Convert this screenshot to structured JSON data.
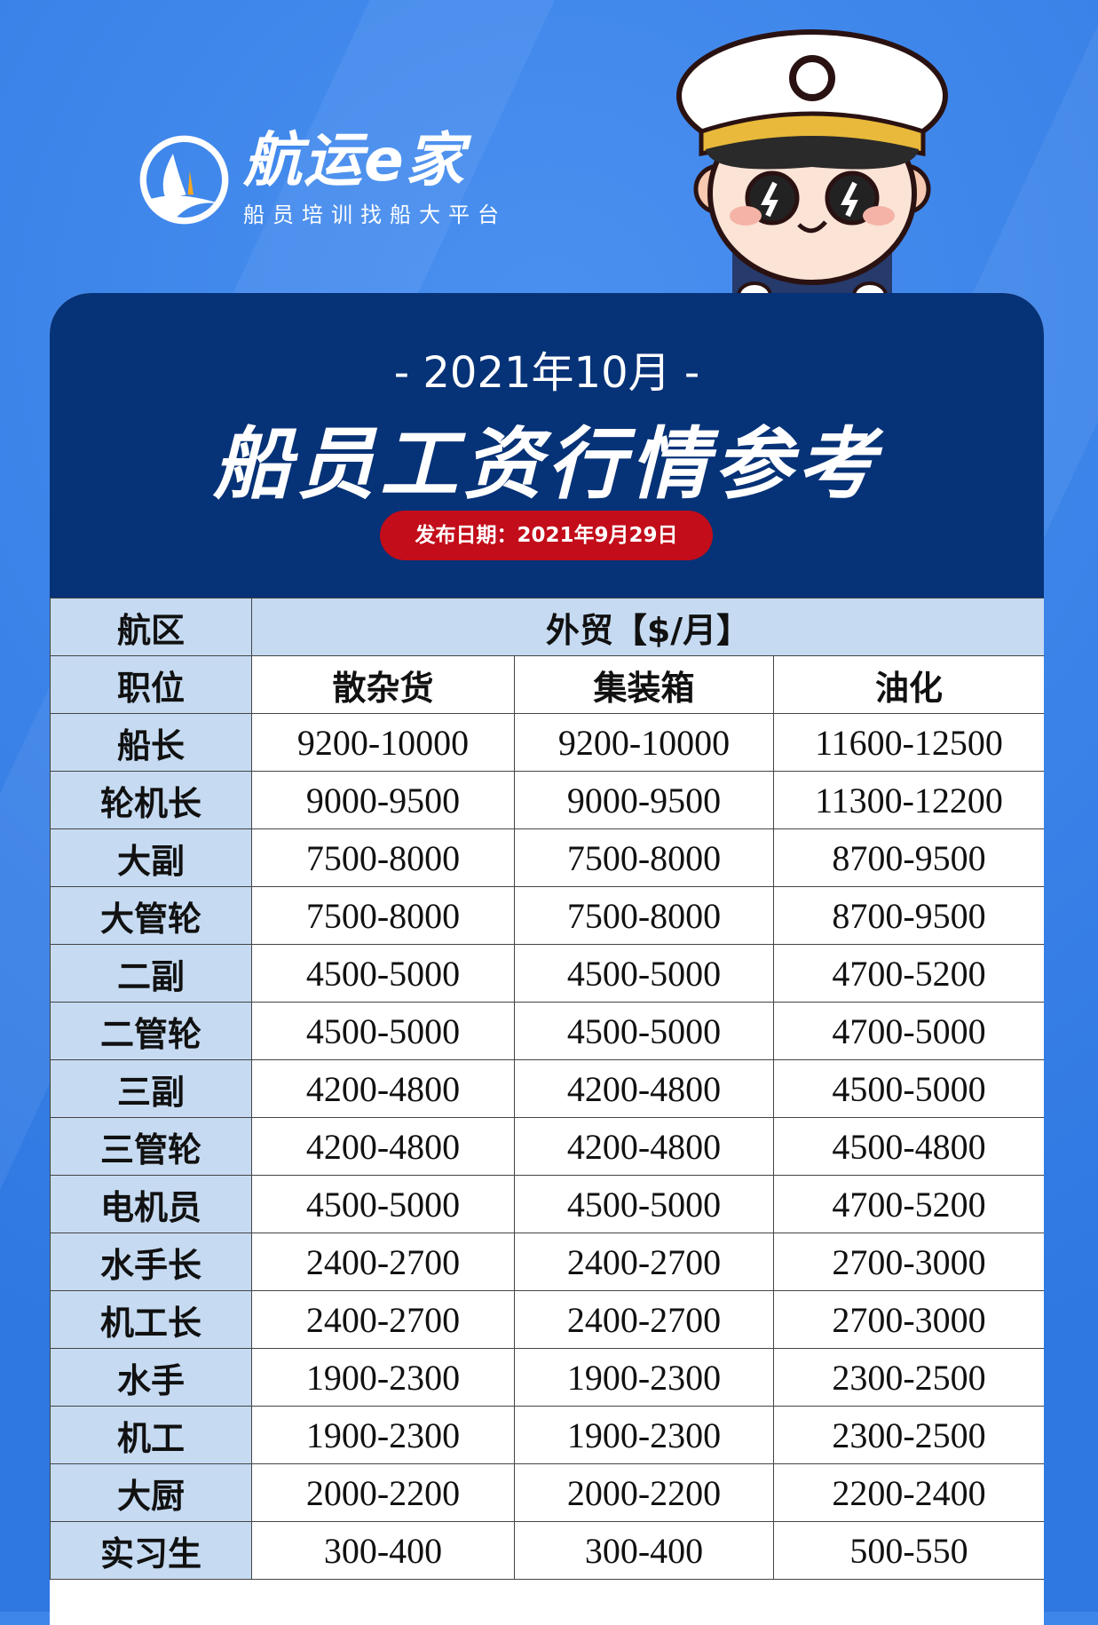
{
  "logo": {
    "title": "航运e家",
    "subtitle": "船员培训找船大平台"
  },
  "header": {
    "month": "- 2021年10月 -",
    "title": "船员工资行情参考",
    "release": "发布日期：2021年9月29日"
  },
  "table": {
    "region_label": "航区",
    "region_value": "外贸【$/月】",
    "position_label": "职位",
    "columns": [
      "散杂货",
      "集装箱",
      "油化"
    ],
    "rows": [
      {
        "position": "船长",
        "values": [
          "9200-10000",
          "9200-10000",
          "11600-12500"
        ]
      },
      {
        "position": "轮机长",
        "values": [
          "9000-9500",
          "9000-9500",
          "11300-12200"
        ]
      },
      {
        "position": "大副",
        "values": [
          "7500-8000",
          "7500-8000",
          "8700-9500"
        ]
      },
      {
        "position": "大管轮",
        "values": [
          "7500-8000",
          "7500-8000",
          "8700-9500"
        ]
      },
      {
        "position": "二副",
        "values": [
          "4500-5000",
          "4500-5000",
          "4700-5200"
        ]
      },
      {
        "position": "二管轮",
        "values": [
          "4500-5000",
          "4500-5000",
          "4700-5000"
        ]
      },
      {
        "position": "三副",
        "values": [
          "4200-4800",
          "4200-4800",
          "4500-5000"
        ]
      },
      {
        "position": "三管轮",
        "values": [
          "4200-4800",
          "4200-4800",
          "4500-4800"
        ]
      },
      {
        "position": "电机员",
        "values": [
          "4500-5000",
          "4500-5000",
          "4700-5200"
        ]
      },
      {
        "position": "水手长",
        "values": [
          "2400-2700",
          "2400-2700",
          "2700-3000"
        ]
      },
      {
        "position": "机工长",
        "values": [
          "2400-2700",
          "2400-2700",
          "2700-3000"
        ]
      },
      {
        "position": "水手",
        "values": [
          "1900-2300",
          "1900-2300",
          "2300-2500"
        ]
      },
      {
        "position": "机工",
        "values": [
          "1900-2300",
          "1900-2300",
          "2300-2500"
        ]
      },
      {
        "position": "大厨",
        "values": [
          "2000-2200",
          "2000-2200",
          "2200-2400"
        ]
      },
      {
        "position": "实习生",
        "values": [
          "300-400",
          "300-400",
          "500-550"
        ]
      }
    ]
  },
  "colors": {
    "background": "#3f86ea",
    "header": "#063277",
    "pill": "#c30d1a",
    "position_cell": "#c6dbf2"
  }
}
